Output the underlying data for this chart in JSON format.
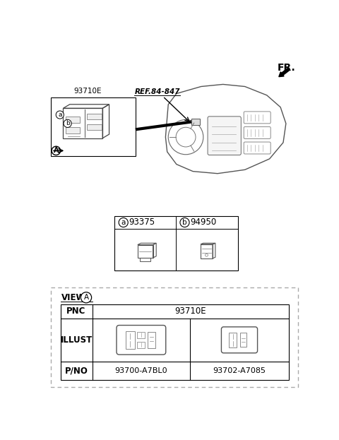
{
  "bg_color": "#ffffff",
  "fr_label": "FR.",
  "label_93710E_top": "93710E",
  "label_ref": "REF.84-847",
  "label_a": "a",
  "label_b": "b",
  "label_A": "A",
  "part_a_num": "93375",
  "part_b_num": "94950",
  "pnc_label": "PNC",
  "pnc_value": "93710E",
  "illust_label": "ILLUST",
  "pno_label": "P/NO",
  "pno_1": "93700-A7BL0",
  "pno_2": "93702-A7085",
  "view_label": "VIEW",
  "view_circle": "A"
}
